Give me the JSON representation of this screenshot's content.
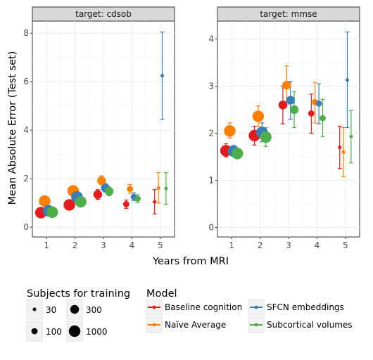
{
  "chart_data": {
    "type": "scatter",
    "ylabel": "Mean Absolute Error (Test set)",
    "xlabel": "Years from MRI",
    "x_ticks": [
      1,
      2,
      3,
      4,
      5
    ],
    "colors": {
      "Baseline cognition": "#e41a1c",
      "Naïve Average": "#ff7f00",
      "SFCN embeddings": "#377eb8",
      "Subcortical volumes": "#4daf4a"
    },
    "facets": [
      {
        "title": "target: cdsob",
        "xlim": [
          0.5,
          5.5
        ],
        "ylim": [
          -0.4,
          8.5
        ],
        "y_ticks": [
          0,
          2,
          4,
          6,
          8
        ],
        "points": [
          {
            "model": "Baseline cognition",
            "x": 1,
            "n": 1000,
            "y": 0.6,
            "lo": 0.5,
            "hi": 0.7
          },
          {
            "model": "Naïve Average",
            "x": 1,
            "n": 1000,
            "y": 1.08,
            "lo": 0.95,
            "hi": 1.2
          },
          {
            "model": "SFCN embeddings",
            "x": 1,
            "n": 1000,
            "y": 0.68,
            "lo": 0.58,
            "hi": 0.8
          },
          {
            "model": "Subcortical volumes",
            "x": 1,
            "n": 1000,
            "y": 0.62,
            "lo": 0.52,
            "hi": 0.72
          },
          {
            "model": "Baseline cognition",
            "x": 2,
            "n": 1000,
            "y": 0.92,
            "lo": 0.8,
            "hi": 1.05
          },
          {
            "model": "Naïve Average",
            "x": 2,
            "n": 1000,
            "y": 1.5,
            "lo": 1.35,
            "hi": 1.65
          },
          {
            "model": "SFCN embeddings",
            "x": 2,
            "n": 1000,
            "y": 1.25,
            "lo": 1.1,
            "hi": 1.4
          },
          {
            "model": "Subcortical volumes",
            "x": 2,
            "n": 1000,
            "y": 1.05,
            "lo": 0.92,
            "hi": 1.18
          },
          {
            "model": "Baseline cognition",
            "x": 3,
            "n": 300,
            "y": 1.35,
            "lo": 1.15,
            "hi": 1.55
          },
          {
            "model": "Naïve Average",
            "x": 3,
            "n": 300,
            "y": 1.92,
            "lo": 1.75,
            "hi": 2.12
          },
          {
            "model": "SFCN embeddings",
            "x": 3,
            "n": 300,
            "y": 1.62,
            "lo": 1.45,
            "hi": 1.8
          },
          {
            "model": "Subcortical volumes",
            "x": 3,
            "n": 300,
            "y": 1.48,
            "lo": 1.3,
            "hi": 1.66
          },
          {
            "model": "Baseline cognition",
            "x": 4,
            "n": 100,
            "y": 0.95,
            "lo": 0.78,
            "hi": 1.12
          },
          {
            "model": "Naïve Average",
            "x": 4,
            "n": 100,
            "y": 1.58,
            "lo": 1.4,
            "hi": 1.76
          },
          {
            "model": "SFCN embeddings",
            "x": 4,
            "n": 100,
            "y": 1.25,
            "lo": 1.1,
            "hi": 1.42
          },
          {
            "model": "Subcortical volumes",
            "x": 4,
            "n": 100,
            "y": 1.18,
            "lo": 1.02,
            "hi": 1.34
          },
          {
            "model": "Baseline cognition",
            "x": 5,
            "n": 30,
            "y": 1.05,
            "lo": 0.55,
            "hi": 1.55
          },
          {
            "model": "Naïve Average",
            "x": 5,
            "n": 30,
            "y": 1.62,
            "lo": 1.0,
            "hi": 2.25
          },
          {
            "model": "SFCN embeddings",
            "x": 5,
            "n": 30,
            "y": 6.25,
            "lo": 4.45,
            "hi": 8.05
          },
          {
            "model": "Subcortical volumes",
            "x": 5,
            "n": 30,
            "y": 1.6,
            "lo": 0.95,
            "hi": 2.25
          }
        ]
      },
      {
        "title": "target: mmse",
        "xlim": [
          0.5,
          5.5
        ],
        "ylim": [
          -0.2,
          4.38
        ],
        "y_ticks": [
          0,
          1,
          2,
          3,
          4
        ],
        "points": [
          {
            "model": "Baseline cognition",
            "x": 1,
            "n": 1000,
            "y": 1.63,
            "lo": 1.5,
            "hi": 1.78
          },
          {
            "model": "Naïve Average",
            "x": 1,
            "n": 1000,
            "y": 2.05,
            "lo": 1.9,
            "hi": 2.22
          },
          {
            "model": "SFCN embeddings",
            "x": 1,
            "n": 1000,
            "y": 1.62,
            "lo": 1.52,
            "hi": 1.74
          },
          {
            "model": "Subcortical volumes",
            "x": 1,
            "n": 1000,
            "y": 1.57,
            "lo": 1.46,
            "hi": 1.68
          },
          {
            "model": "Baseline cognition",
            "x": 2,
            "n": 1000,
            "y": 1.95,
            "lo": 1.75,
            "hi": 2.15
          },
          {
            "model": "Naïve Average",
            "x": 2,
            "n": 1000,
            "y": 2.36,
            "lo": 2.15,
            "hi": 2.58
          },
          {
            "model": "SFCN embeddings",
            "x": 2,
            "n": 1000,
            "y": 2.02,
            "lo": 1.82,
            "hi": 2.22
          },
          {
            "model": "Subcortical volumes",
            "x": 2,
            "n": 1000,
            "y": 1.92,
            "lo": 1.72,
            "hi": 2.12
          },
          {
            "model": "Baseline cognition",
            "x": 3,
            "n": 300,
            "y": 2.6,
            "lo": 2.2,
            "hi": 3.0
          },
          {
            "model": "Naïve Average",
            "x": 3,
            "n": 300,
            "y": 3.02,
            "lo": 2.6,
            "hi": 3.43
          },
          {
            "model": "SFCN embeddings",
            "x": 3,
            "n": 300,
            "y": 2.7,
            "lo": 2.3,
            "hi": 3.1
          },
          {
            "model": "Subcortical volumes",
            "x": 3,
            "n": 300,
            "y": 2.5,
            "lo": 2.12,
            "hi": 2.88
          },
          {
            "model": "Baseline cognition",
            "x": 4,
            "n": 100,
            "y": 2.42,
            "lo": 2.0,
            "hi": 2.83
          },
          {
            "model": "Naïve Average",
            "x": 4,
            "n": 100,
            "y": 2.66,
            "lo": 2.22,
            "hi": 3.08
          },
          {
            "model": "SFCN embeddings",
            "x": 4,
            "n": 100,
            "y": 2.63,
            "lo": 2.2,
            "hi": 3.05
          },
          {
            "model": "Subcortical volumes",
            "x": 4,
            "n": 100,
            "y": 2.32,
            "lo": 1.93,
            "hi": 2.72
          },
          {
            "model": "Baseline cognition",
            "x": 5,
            "n": 30,
            "y": 1.7,
            "lo": 1.25,
            "hi": 2.15
          },
          {
            "model": "Naïve Average",
            "x": 5,
            "n": 30,
            "y": 1.6,
            "lo": 1.08,
            "hi": 2.12
          },
          {
            "model": "SFCN embeddings",
            "x": 5,
            "n": 30,
            "y": 3.13,
            "lo": 2.12,
            "hi": 4.15
          },
          {
            "model": "Subcortical volumes",
            "x": 5,
            "n": 30,
            "y": 1.93,
            "lo": 1.37,
            "hi": 2.48
          }
        ]
      }
    ],
    "legend_size": {
      "title": "Subjects for training",
      "entries": [
        {
          "label": "30",
          "n": 30
        },
        {
          "label": "300",
          "n": 300
        },
        {
          "label": "100",
          "n": 100
        },
        {
          "label": "1000",
          "n": 1000
        }
      ]
    },
    "legend_model": {
      "title": "Model",
      "entries": [
        {
          "label": "Baseline cognition",
          "model": "Baseline cognition"
        },
        {
          "label": "SFCN embeddings",
          "model": "SFCN embeddings"
        },
        {
          "label": "Naïve Average",
          "model": "Naïve Average"
        },
        {
          "label": "Subcortical volumes",
          "model": "Subcortical volumes"
        }
      ]
    }
  }
}
